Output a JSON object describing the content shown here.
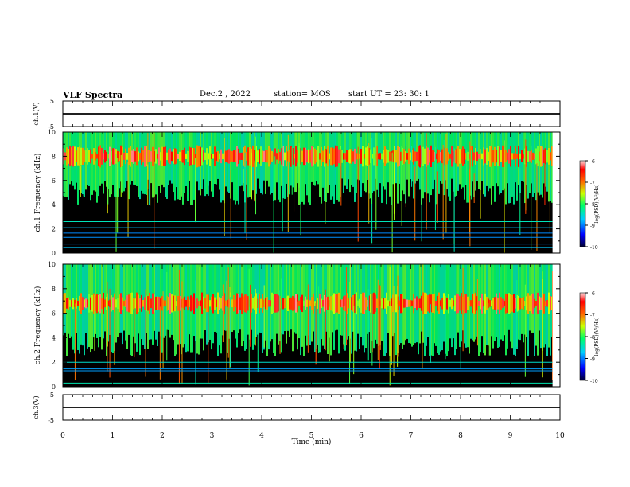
{
  "header": {
    "title": "VLF Spectra",
    "date": "Dec.2 , 2022",
    "station": "station= MOS",
    "start_ut": "start UT = 23: 30: 1"
  },
  "colors": {
    "background": "#ffffff",
    "spectrogram_floor": "#000000",
    "colormap": [
      "#000033",
      "#0000ff",
      "#00ccff",
      "#00ff66",
      "#ccff00",
      "#ff6600",
      "#ff0000",
      "#ffdddd"
    ]
  },
  "chart_data": [
    {
      "type": "line",
      "name": "channel-1-waveform",
      "ylabel": "ch.1(V)",
      "ylim": [
        -5,
        5
      ],
      "yticks": [
        "5",
        "-5"
      ],
      "xlim": [
        0,
        10
      ],
      "x": [
        0,
        10
      ],
      "y": [
        0,
        0
      ]
    },
    {
      "type": "heatmap",
      "name": "channel-1-spectrogram",
      "ylabel": "ch.1 Frequency (kHz)",
      "ylim": [
        0,
        10
      ],
      "yticks": [
        "0",
        "2",
        "4",
        "6",
        "8",
        "10"
      ],
      "xlim": [
        0,
        10
      ],
      "x_extent": [
        0,
        9.85
      ],
      "band_center_khz": 8,
      "band_bottom_khz": 5.5,
      "tones_khz": [
        0.45,
        0.75,
        1.3,
        1.65,
        2.1,
        2.6
      ],
      "colorbar": {
        "label": "log(PSD)(V²/Hz)",
        "range": [
          -10,
          -6
        ],
        "ticks": [
          "-6",
          "-7",
          "-8",
          "-9",
          "-10"
        ]
      }
    },
    {
      "type": "heatmap",
      "name": "channel-2-spectrogram",
      "ylabel": "ch.2 Frequency (kHz)",
      "ylim": [
        0,
        10
      ],
      "yticks": [
        "0",
        "2",
        "4",
        "6",
        "8",
        "10"
      ],
      "xlim": [
        0,
        10
      ],
      "x_extent": [
        0,
        9.85
      ],
      "band_center_khz": 6.8,
      "band_bottom_khz": 4.0,
      "tones_khz": [
        0.3,
        1.3,
        1.45,
        2.0,
        2.5
      ],
      "colorbar": {
        "label": "log(PSD)(V²/Hz)",
        "range": [
          -10,
          -6
        ],
        "ticks": [
          "-6",
          "-7",
          "-8",
          "-9",
          "-10"
        ]
      }
    },
    {
      "type": "line",
      "name": "channel-3-waveform",
      "ylabel": "ch.3(V)",
      "ylim": [
        -5,
        5
      ],
      "yticks": [
        "5",
        "-5"
      ],
      "xlabel": "Time (min)",
      "xticks": [
        "0",
        "1",
        "2",
        "3",
        "4",
        "5",
        "6",
        "7",
        "8",
        "9",
        "10"
      ],
      "xlim": [
        0,
        10
      ],
      "x": [
        0,
        10
      ],
      "y": [
        0,
        0
      ]
    }
  ]
}
